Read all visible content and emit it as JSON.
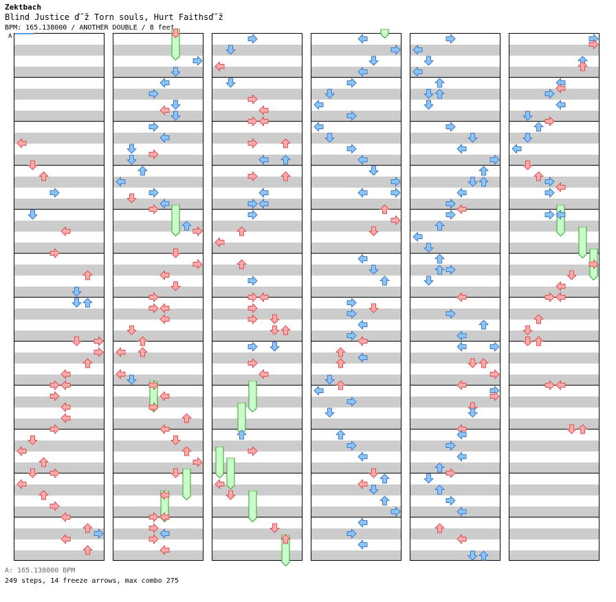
{
  "header": {
    "artist": "Zektbach",
    "title": "Blind Justice ď˝ž Torn souls, Hurt Faithsď˝ž",
    "meta": "BPM: 165.138000 / ANOTHER DOUBLE / 8 feet"
  },
  "speed_marker": "A",
  "footer": {
    "bpm": "A: 165.138000 BPM",
    "stats": "249 steps, 14 freeze arrows, max combo 275"
  },
  "colors": {
    "red_fill": "#ffaaaa",
    "red_stroke": "#e05050",
    "blue_fill": "#8cc4f4",
    "blue_stroke": "#3a7ad0",
    "freeze_fill": "#c8fcc8",
    "freeze_stroke": "#30a030",
    "row_gray": "#cccccc",
    "bpm_line": "#5aa0e8"
  },
  "icons": {
    "left": "left-arrow-icon",
    "down": "down-arrow-icon",
    "up": "up-arrow-icon",
    "right": "right-arrow-icon"
  },
  "chart": {
    "columns_count": 6,
    "measures_per_column": 12,
    "beats_per_measure": 4,
    "lanes": [
      "P1-left",
      "P1-down",
      "P1-up",
      "P1-right",
      "P2-left",
      "P2-down",
      "P2-up",
      "P2-right"
    ],
    "notes": [
      {
        "c": 0,
        "b": 10,
        "l": 0
      },
      {
        "c": 0,
        "b": 12,
        "l": 1
      },
      {
        "c": 0,
        "b": 13,
        "l": 2
      },
      {
        "c": 0,
        "b": 14.5,
        "l": 3
      },
      {
        "c": 0,
        "b": 16.5,
        "l": 1
      },
      {
        "c": 0,
        "b": 18,
        "l": 4
      },
      {
        "c": 0,
        "b": 20,
        "l": 3
      },
      {
        "c": 0,
        "b": 22,
        "l": 6
      },
      {
        "c": 0,
        "b": 23.5,
        "l": 5
      },
      {
        "c": 0,
        "b": 24.5,
        "l": 5
      },
      {
        "c": 0,
        "b": 24.5,
        "l": 6
      },
      {
        "c": 0,
        "b": 28,
        "l": 5
      },
      {
        "c": 0,
        "b": 28,
        "l": 7
      },
      {
        "c": 0,
        "b": 29,
        "l": 7
      },
      {
        "c": 0,
        "b": 30,
        "l": 6
      },
      {
        "c": 0,
        "b": 31,
        "l": 4
      },
      {
        "c": 0,
        "b": 32,
        "l": 3
      },
      {
        "c": 0,
        "b": 32,
        "l": 4
      },
      {
        "c": 0,
        "b": 33,
        "l": 3
      },
      {
        "c": 0,
        "b": 34,
        "l": 4
      },
      {
        "c": 0,
        "b": 35,
        "l": 4
      },
      {
        "c": 0,
        "b": 36,
        "l": 3
      },
      {
        "c": 0,
        "b": 37,
        "l": 1
      },
      {
        "c": 0,
        "b": 38,
        "l": 0
      },
      {
        "c": 0,
        "b": 39,
        "l": 2
      },
      {
        "c": 0,
        "b": 40,
        "l": 1
      },
      {
        "c": 0,
        "b": 40,
        "l": 3
      },
      {
        "c": 0,
        "b": 41,
        "l": 0
      },
      {
        "c": 0,
        "b": 42,
        "l": 2
      },
      {
        "c": 0,
        "b": 43,
        "l": 3
      },
      {
        "c": 0,
        "b": 44,
        "l": 4
      },
      {
        "c": 0,
        "b": 45,
        "l": 6
      },
      {
        "c": 0,
        "b": 45.5,
        "l": 7
      },
      {
        "c": 0,
        "b": 46,
        "l": 4
      },
      {
        "c": 0,
        "b": 47,
        "l": 6
      },
      {
        "c": 1,
        "b": 0,
        "l": 5
      },
      {
        "c": 1,
        "b": 2.5,
        "l": 7
      },
      {
        "c": 1,
        "b": 3.5,
        "l": 5
      },
      {
        "c": 1,
        "b": 4.5,
        "l": 4
      },
      {
        "c": 1,
        "b": 5.5,
        "l": 3
      },
      {
        "c": 1,
        "b": 6.5,
        "l": 5
      },
      {
        "c": 1,
        "b": 7,
        "l": 4
      },
      {
        "c": 1,
        "b": 7.5,
        "l": 5
      },
      {
        "c": 1,
        "b": 8.5,
        "l": 3
      },
      {
        "c": 1,
        "b": 9.5,
        "l": 4
      },
      {
        "c": 1,
        "b": 10.5,
        "l": 1
      },
      {
        "c": 1,
        "b": 11,
        "l": 3
      },
      {
        "c": 1,
        "b": 11.5,
        "l": 1
      },
      {
        "c": 1,
        "b": 12.5,
        "l": 2
      },
      {
        "c": 1,
        "b": 13.5,
        "l": 0
      },
      {
        "c": 1,
        "b": 14.5,
        "l": 3
      },
      {
        "c": 1,
        "b": 15,
        "l": 1
      },
      {
        "c": 1,
        "b": 15.5,
        "l": 4
      },
      {
        "c": 1,
        "b": 16,
        "l": 3
      },
      {
        "c": 1,
        "b": 17.5,
        "l": 6
      },
      {
        "c": 1,
        "b": 18,
        "l": 7
      },
      {
        "c": 1,
        "b": 20,
        "l": 5
      },
      {
        "c": 1,
        "b": 21,
        "l": 7
      },
      {
        "c": 1,
        "b": 22,
        "l": 4
      },
      {
        "c": 1,
        "b": 23,
        "l": 5
      },
      {
        "c": 1,
        "b": 24,
        "l": 3
      },
      {
        "c": 1,
        "b": 25,
        "l": 3
      },
      {
        "c": 1,
        "b": 25,
        "l": 4
      },
      {
        "c": 1,
        "b": 26,
        "l": 4
      },
      {
        "c": 1,
        "b": 27,
        "l": 1
      },
      {
        "c": 1,
        "b": 28,
        "l": 2
      },
      {
        "c": 1,
        "b": 29,
        "l": 0
      },
      {
        "c": 1,
        "b": 29,
        "l": 2
      },
      {
        "c": 1,
        "b": 31,
        "l": 0
      },
      {
        "c": 1,
        "b": 31.5,
        "l": 1
      },
      {
        "c": 1,
        "b": 32,
        "l": 3
      },
      {
        "c": 1,
        "b": 33,
        "l": 4
      },
      {
        "c": 1,
        "b": 34,
        "l": 3
      },
      {
        "c": 1,
        "b": 35,
        "l": 6
      },
      {
        "c": 1,
        "b": 36,
        "l": 4
      },
      {
        "c": 1,
        "b": 37,
        "l": 5
      },
      {
        "c": 1,
        "b": 38,
        "l": 6
      },
      {
        "c": 1,
        "b": 39,
        "l": 7
      },
      {
        "c": 1,
        "b": 40,
        "l": 5
      },
      {
        "c": 1,
        "b": 42,
        "l": 4
      },
      {
        "c": 1,
        "b": 44,
        "l": 3
      },
      {
        "c": 1,
        "b": 44,
        "l": 4
      },
      {
        "c": 1,
        "b": 45,
        "l": 3
      },
      {
        "c": 1,
        "b": 45.5,
        "l": 4
      },
      {
        "c": 1,
        "b": 46,
        "l": 3
      },
      {
        "c": 1,
        "b": 47,
        "l": 4
      },
      {
        "c": 2,
        "b": 0.5,
        "l": 3
      },
      {
        "c": 2,
        "b": 1.5,
        "l": 1
      },
      {
        "c": 2,
        "b": 3,
        "l": 0
      },
      {
        "c": 2,
        "b": 4.5,
        "l": 1
      },
      {
        "c": 2,
        "b": 6,
        "l": 3
      },
      {
        "c": 2,
        "b": 7,
        "l": 4
      },
      {
        "c": 2,
        "b": 8,
        "l": 3
      },
      {
        "c": 2,
        "b": 8,
        "l": 4
      },
      {
        "c": 2,
        "b": 10,
        "l": 3
      },
      {
        "c": 2,
        "b": 10,
        "l": 6
      },
      {
        "c": 2,
        "b": 11.5,
        "l": 4
      },
      {
        "c": 2,
        "b": 11.5,
        "l": 6
      },
      {
        "c": 2,
        "b": 13,
        "l": 3
      },
      {
        "c": 2,
        "b": 13,
        "l": 6
      },
      {
        "c": 2,
        "b": 14.5,
        "l": 4
      },
      {
        "c": 2,
        "b": 15.5,
        "l": 3
      },
      {
        "c": 2,
        "b": 15.5,
        "l": 4
      },
      {
        "c": 2,
        "b": 16.5,
        "l": 3
      },
      {
        "c": 2,
        "b": 18,
        "l": 2
      },
      {
        "c": 2,
        "b": 19,
        "l": 0
      },
      {
        "c": 2,
        "b": 21,
        "l": 2
      },
      {
        "c": 2,
        "b": 22.5,
        "l": 3
      },
      {
        "c": 2,
        "b": 24,
        "l": 3
      },
      {
        "c": 2,
        "b": 24,
        "l": 4
      },
      {
        "c": 2,
        "b": 25,
        "l": 3
      },
      {
        "c": 2,
        "b": 26,
        "l": 3
      },
      {
        "c": 2,
        "b": 26,
        "l": 5
      },
      {
        "c": 2,
        "b": 27,
        "l": 5
      },
      {
        "c": 2,
        "b": 27,
        "l": 6
      },
      {
        "c": 2,
        "b": 28.5,
        "l": 3
      },
      {
        "c": 2,
        "b": 28.5,
        "l": 5
      },
      {
        "c": 2,
        "b": 30,
        "l": 3
      },
      {
        "c": 2,
        "b": 31,
        "l": 4
      },
      {
        "c": 2,
        "b": 36.5,
        "l": 2
      },
      {
        "c": 2,
        "b": 38,
        "l": 3
      },
      {
        "c": 2,
        "b": 41,
        "l": 0
      },
      {
        "c": 2,
        "b": 42,
        "l": 1
      },
      {
        "c": 2,
        "b": 45,
        "l": 5
      },
      {
        "c": 2,
        "b": 46,
        "l": 6
      },
      {
        "c": 3,
        "b": 0.5,
        "l": 4
      },
      {
        "c": 3,
        "b": 1.5,
        "l": 7
      },
      {
        "c": 3,
        "b": 2.5,
        "l": 5
      },
      {
        "c": 3,
        "b": 3.5,
        "l": 4
      },
      {
        "c": 3,
        "b": 4.5,
        "l": 3
      },
      {
        "c": 3,
        "b": 5.5,
        "l": 1
      },
      {
        "c": 3,
        "b": 6.5,
        "l": 0
      },
      {
        "c": 3,
        "b": 7.5,
        "l": 3
      },
      {
        "c": 3,
        "b": 8.5,
        "l": 0
      },
      {
        "c": 3,
        "b": 9.5,
        "l": 1
      },
      {
        "c": 3,
        "b": 10.5,
        "l": 3
      },
      {
        "c": 3,
        "b": 11.5,
        "l": 4
      },
      {
        "c": 3,
        "b": 12.5,
        "l": 5
      },
      {
        "c": 3,
        "b": 13.5,
        "l": 7
      },
      {
        "c": 3,
        "b": 14.5,
        "l": 4
      },
      {
        "c": 3,
        "b": 14.5,
        "l": 7
      },
      {
        "c": 3,
        "b": 16,
        "l": 6
      },
      {
        "c": 3,
        "b": 17,
        "l": 7
      },
      {
        "c": 3,
        "b": 18,
        "l": 5
      },
      {
        "c": 3,
        "b": 20.5,
        "l": 4
      },
      {
        "c": 3,
        "b": 21.5,
        "l": 5
      },
      {
        "c": 3,
        "b": 22.5,
        "l": 6
      },
      {
        "c": 3,
        "b": 24.5,
        "l": 3
      },
      {
        "c": 3,
        "b": 25,
        "l": 5
      },
      {
        "c": 3,
        "b": 25.5,
        "l": 3
      },
      {
        "c": 3,
        "b": 26.5,
        "l": 4
      },
      {
        "c": 3,
        "b": 27.5,
        "l": 3
      },
      {
        "c": 3,
        "b": 28,
        "l": 4
      },
      {
        "c": 3,
        "b": 29,
        "l": 2
      },
      {
        "c": 3,
        "b": 29.5,
        "l": 4
      },
      {
        "c": 3,
        "b": 30,
        "l": 2
      },
      {
        "c": 3,
        "b": 31.5,
        "l": 1
      },
      {
        "c": 3,
        "b": 32,
        "l": 2
      },
      {
        "c": 3,
        "b": 32.5,
        "l": 0
      },
      {
        "c": 3,
        "b": 33.5,
        "l": 3
      },
      {
        "c": 3,
        "b": 34.5,
        "l": 1
      },
      {
        "c": 3,
        "b": 36.5,
        "l": 2
      },
      {
        "c": 3,
        "b": 37.5,
        "l": 3
      },
      {
        "c": 3,
        "b": 38.5,
        "l": 4
      },
      {
        "c": 3,
        "b": 40,
        "l": 5
      },
      {
        "c": 3,
        "b": 40.5,
        "l": 6
      },
      {
        "c": 3,
        "b": 41,
        "l": 4
      },
      {
        "c": 3,
        "b": 41.5,
        "l": 5
      },
      {
        "c": 3,
        "b": 42.5,
        "l": 6
      },
      {
        "c": 3,
        "b": 43.5,
        "l": 7
      },
      {
        "c": 3,
        "b": 44.5,
        "l": 4
      },
      {
        "c": 3,
        "b": 45.5,
        "l": 3
      },
      {
        "c": 3,
        "b": 46.5,
        "l": 4
      },
      {
        "c": 4,
        "b": 0.5,
        "l": 3
      },
      {
        "c": 4,
        "b": 1.5,
        "l": 0
      },
      {
        "c": 4,
        "b": 2.5,
        "l": 1
      },
      {
        "c": 4,
        "b": 3.5,
        "l": 0
      },
      {
        "c": 4,
        "b": 4.5,
        "l": 2
      },
      {
        "c": 4,
        "b": 5.5,
        "l": 1
      },
      {
        "c": 4,
        "b": 5.5,
        "l": 2
      },
      {
        "c": 4,
        "b": 6.5,
        "l": 1
      },
      {
        "c": 4,
        "b": 8.5,
        "l": 3
      },
      {
        "c": 4,
        "b": 9.5,
        "l": 5
      },
      {
        "c": 4,
        "b": 10.5,
        "l": 4
      },
      {
        "c": 4,
        "b": 11.5,
        "l": 7
      },
      {
        "c": 4,
        "b": 12.5,
        "l": 6
      },
      {
        "c": 4,
        "b": 13.5,
        "l": 5
      },
      {
        "c": 4,
        "b": 13.5,
        "l": 6
      },
      {
        "c": 4,
        "b": 14.5,
        "l": 4
      },
      {
        "c": 4,
        "b": 15.5,
        "l": 3
      },
      {
        "c": 4,
        "b": 16,
        "l": 4
      },
      {
        "c": 4,
        "b": 16.5,
        "l": 3
      },
      {
        "c": 4,
        "b": 17.5,
        "l": 2
      },
      {
        "c": 4,
        "b": 18.5,
        "l": 0
      },
      {
        "c": 4,
        "b": 19.5,
        "l": 1
      },
      {
        "c": 4,
        "b": 20.5,
        "l": 2
      },
      {
        "c": 4,
        "b": 21.5,
        "l": 2
      },
      {
        "c": 4,
        "b": 21.5,
        "l": 3
      },
      {
        "c": 4,
        "b": 22.5,
        "l": 1
      },
      {
        "c": 4,
        "b": 24,
        "l": 4
      },
      {
        "c": 4,
        "b": 25.5,
        "l": 3
      },
      {
        "c": 4,
        "b": 26.5,
        "l": 6
      },
      {
        "c": 4,
        "b": 27.5,
        "l": 4
      },
      {
        "c": 4,
        "b": 28.5,
        "l": 4
      },
      {
        "c": 4,
        "b": 28.5,
        "l": 7
      },
      {
        "c": 4,
        "b": 30,
        "l": 5
      },
      {
        "c": 4,
        "b": 30,
        "l": 6
      },
      {
        "c": 4,
        "b": 31,
        "l": 7
      },
      {
        "c": 4,
        "b": 32,
        "l": 4
      },
      {
        "c": 4,
        "b": 32.5,
        "l": 7
      },
      {
        "c": 4,
        "b": 33,
        "l": 7
      },
      {
        "c": 4,
        "b": 34,
        "l": 5
      },
      {
        "c": 4,
        "b": 34.5,
        "l": 5
      },
      {
        "c": 4,
        "b": 36,
        "l": 4
      },
      {
        "c": 4,
        "b": 36.5,
        "l": 4
      },
      {
        "c": 4,
        "b": 37.5,
        "l": 3
      },
      {
        "c": 4,
        "b": 38.5,
        "l": 4
      },
      {
        "c": 4,
        "b": 39.5,
        "l": 2
      },
      {
        "c": 4,
        "b": 40,
        "l": 3
      },
      {
        "c": 4,
        "b": 40.5,
        "l": 1
      },
      {
        "c": 4,
        "b": 41.5,
        "l": 2
      },
      {
        "c": 4,
        "b": 42.5,
        "l": 3
      },
      {
        "c": 4,
        "b": 43.5,
        "l": 4
      },
      {
        "c": 4,
        "b": 45,
        "l": 2
      },
      {
        "c": 4,
        "b": 46,
        "l": 4
      },
      {
        "c": 4,
        "b": 47.5,
        "l": 5
      },
      {
        "c": 4,
        "b": 47.5,
        "l": 6
      },
      {
        "c": 5,
        "b": 0.5,
        "l": 7
      },
      {
        "c": 5,
        "b": 1,
        "l": 7
      },
      {
        "c": 5,
        "b": 2.5,
        "l": 6
      },
      {
        "c": 5,
        "b": 3,
        "l": 6
      },
      {
        "c": 5,
        "b": 4.5,
        "l": 4
      },
      {
        "c": 5,
        "b": 5,
        "l": 4
      },
      {
        "c": 5,
        "b": 5.5,
        "l": 3
      },
      {
        "c": 5,
        "b": 6.5,
        "l": 4
      },
      {
        "c": 5,
        "b": 7.5,
        "l": 1
      },
      {
        "c": 5,
        "b": 8,
        "l": 3
      },
      {
        "c": 5,
        "b": 8.5,
        "l": 2
      },
      {
        "c": 5,
        "b": 9.5,
        "l": 1
      },
      {
        "c": 5,
        "b": 10.5,
        "l": 0
      },
      {
        "c": 5,
        "b": 12,
        "l": 1
      },
      {
        "c": 5,
        "b": 13,
        "l": 2
      },
      {
        "c": 5,
        "b": 13.5,
        "l": 3
      },
      {
        "c": 5,
        "b": 14,
        "l": 4
      },
      {
        "c": 5,
        "b": 14.5,
        "l": 3
      },
      {
        "c": 5,
        "b": 16.5,
        "l": 3
      },
      {
        "c": 5,
        "b": 16.5,
        "l": 4
      },
      {
        "c": 5,
        "b": 21,
        "l": 7
      },
      {
        "c": 5,
        "b": 22,
        "l": 5
      },
      {
        "c": 5,
        "b": 23,
        "l": 4
      },
      {
        "c": 5,
        "b": 24,
        "l": 3
      },
      {
        "c": 5,
        "b": 24,
        "l": 4
      },
      {
        "c": 5,
        "b": 26,
        "l": 2
      },
      {
        "c": 5,
        "b": 27,
        "l": 1
      },
      {
        "c": 5,
        "b": 28,
        "l": 1
      },
      {
        "c": 5,
        "b": 28,
        "l": 2
      },
      {
        "c": 5,
        "b": 32,
        "l": 3
      },
      {
        "c": 5,
        "b": 32,
        "l": 4
      },
      {
        "c": 5,
        "b": 36,
        "l": 5
      },
      {
        "c": 5,
        "b": 36,
        "l": 6
      }
    ],
    "freezes": [
      {
        "c": 1,
        "b": 0,
        "e": 2.5,
        "l": 5
      },
      {
        "c": 1,
        "b": 16,
        "e": 18.5,
        "l": 5
      },
      {
        "c": 1,
        "b": 32,
        "e": 34.5,
        "l": 3
      },
      {
        "c": 1,
        "b": 40,
        "e": 42.5,
        "l": 6
      },
      {
        "c": 1,
        "b": 42,
        "e": 44.5,
        "l": 4
      },
      {
        "c": 2,
        "b": 32,
        "e": 34.5,
        "l": 3
      },
      {
        "c": 2,
        "b": 34,
        "e": 36.5,
        "l": 2
      },
      {
        "c": 2,
        "b": 38,
        "e": 40.5,
        "l": 0
      },
      {
        "c": 2,
        "b": 39,
        "e": 41.5,
        "l": 1
      },
      {
        "c": 2,
        "b": 42,
        "e": 44.5,
        "l": 3
      },
      {
        "c": 2,
        "b": 46,
        "e": 48.5,
        "l": 6
      },
      {
        "c": 3,
        "b": 0,
        "e": 0.5,
        "l": 6
      },
      {
        "c": 5,
        "b": 16,
        "e": 18.5,
        "l": 4
      },
      {
        "c": 5,
        "b": 18,
        "e": 20.5,
        "l": 6
      },
      {
        "c": 5,
        "b": 20,
        "e": 22.5,
        "l": 7
      }
    ]
  }
}
